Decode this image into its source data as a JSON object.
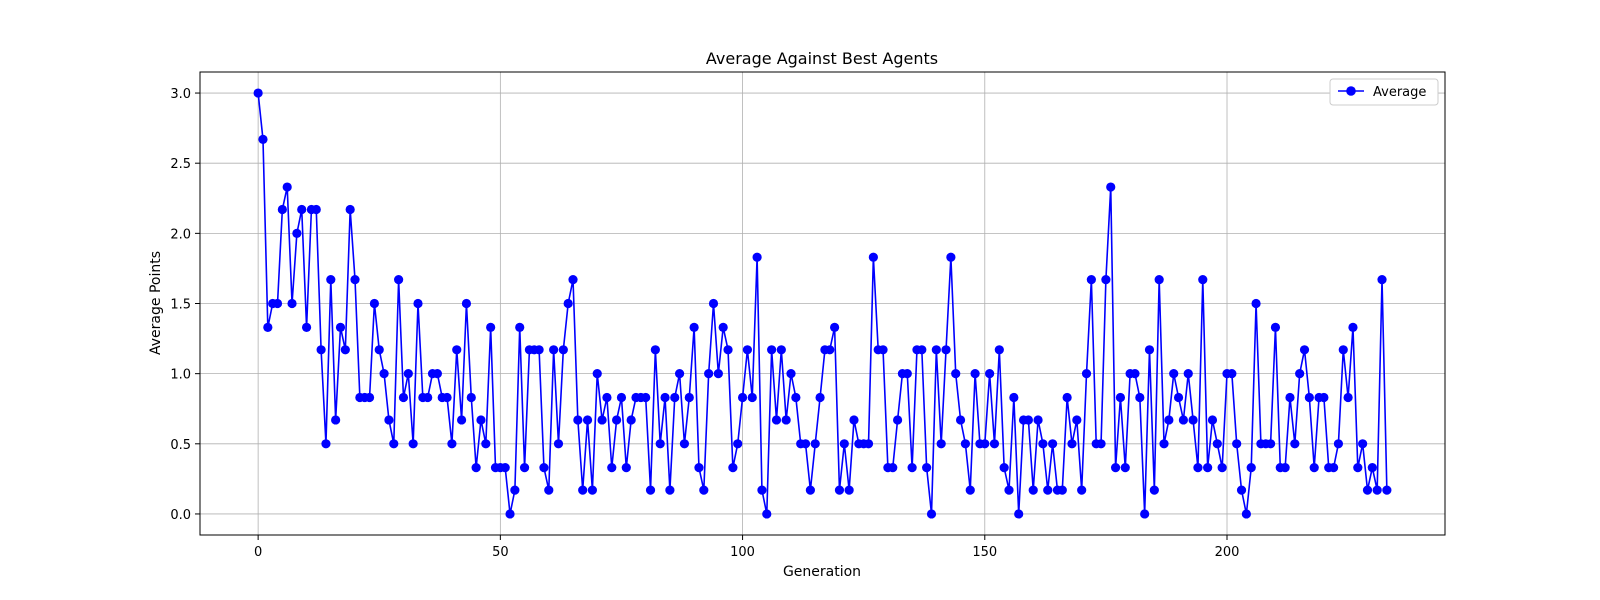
{
  "chart_data": {
    "type": "line",
    "title": "Average Against Best Agents",
    "xlabel": "Generation",
    "ylabel": "Average Points",
    "xlim": [
      -12,
      245
    ],
    "ylim": [
      -0.15,
      3.15
    ],
    "xticks": [
      0,
      50,
      100,
      150,
      200
    ],
    "yticks": [
      0.0,
      0.5,
      1.0,
      1.5,
      2.0,
      2.5,
      3.0
    ],
    "xtick_labels": [
      "0",
      "50",
      "100",
      "150",
      "200"
    ],
    "ytick_labels": [
      "0.0",
      "0.5",
      "1.0",
      "1.5",
      "2.0",
      "2.5",
      "3.0"
    ],
    "grid": true,
    "legend_position": "top-right",
    "series": [
      {
        "name": "Average",
        "color": "#0000ff",
        "marker": "circle",
        "x_start": 0,
        "x_step": 1,
        "values": [
          3.0,
          2.67,
          1.33,
          1.5,
          1.5,
          2.17,
          2.33,
          1.5,
          2.0,
          2.17,
          1.33,
          2.17,
          2.17,
          1.17,
          0.5,
          1.67,
          0.67,
          1.33,
          1.17,
          2.17,
          1.67,
          0.83,
          0.83,
          0.83,
          1.5,
          1.17,
          1.0,
          0.67,
          0.5,
          1.67,
          0.83,
          1.0,
          0.5,
          1.5,
          0.83,
          0.83,
          1.0,
          1.0,
          0.83,
          0.83,
          0.5,
          1.17,
          0.67,
          1.5,
          0.83,
          0.33,
          0.67,
          0.5,
          1.33,
          0.33,
          0.33,
          0.33,
          0.0,
          0.17,
          1.33,
          0.33,
          1.17,
          1.17,
          1.17,
          0.33,
          0.17,
          1.17,
          0.5,
          1.17,
          1.5,
          1.67,
          0.67,
          0.17,
          0.67,
          0.17,
          1.0,
          0.67,
          0.83,
          0.33,
          0.67,
          0.83,
          0.33,
          0.67,
          0.83,
          0.83,
          0.83,
          0.17,
          1.17,
          0.5,
          0.83,
          0.17,
          0.83,
          1.0,
          0.5,
          0.83,
          1.33,
          0.33,
          0.17,
          1.0,
          1.5,
          1.0,
          1.33,
          1.17,
          0.33,
          0.5,
          0.83,
          1.17,
          0.83,
          1.83,
          0.17,
          0.0,
          1.17,
          0.67,
          1.17,
          0.67,
          1.0,
          0.83,
          0.5,
          0.5,
          0.17,
          0.5,
          0.83,
          1.17,
          1.17,
          1.33,
          0.17,
          0.5,
          0.17,
          0.67,
          0.5,
          0.5,
          0.5,
          1.83,
          1.17,
          1.17,
          0.33,
          0.33,
          0.67,
          1.0,
          1.0,
          0.33,
          1.17,
          1.17,
          0.33,
          0.0,
          1.17,
          0.5,
          1.17,
          1.83,
          1.0,
          0.67,
          0.5,
          0.17,
          1.0,
          0.5,
          0.5,
          1.0,
          0.5,
          1.17,
          0.33,
          0.17,
          0.83,
          0.0,
          0.67,
          0.67,
          0.17,
          0.67,
          0.5,
          0.17,
          0.5,
          0.17,
          0.17,
          0.83,
          0.5,
          0.67,
          0.17,
          1.0,
          1.67,
          0.5,
          0.5,
          1.67,
          2.33,
          0.33,
          0.83,
          0.33,
          1.0,
          1.0,
          0.83,
          0.0,
          1.17,
          0.17,
          1.67,
          0.5,
          0.67,
          1.0,
          0.83,
          0.67,
          1.0,
          0.67,
          0.33,
          1.67,
          0.33,
          0.67,
          0.5,
          0.33,
          1.0,
          1.0,
          0.5,
          0.17,
          0.0,
          0.33,
          1.5,
          0.5,
          0.5,
          0.5,
          1.33,
          0.33,
          0.33,
          0.83,
          0.5,
          1.0,
          1.17,
          0.83,
          0.33,
          0.83,
          0.83,
          0.33,
          0.33,
          0.5,
          1.17,
          0.83,
          1.33,
          0.33,
          0.5,
          0.17,
          0.33,
          0.17,
          1.67,
          0.17
        ]
      }
    ]
  }
}
